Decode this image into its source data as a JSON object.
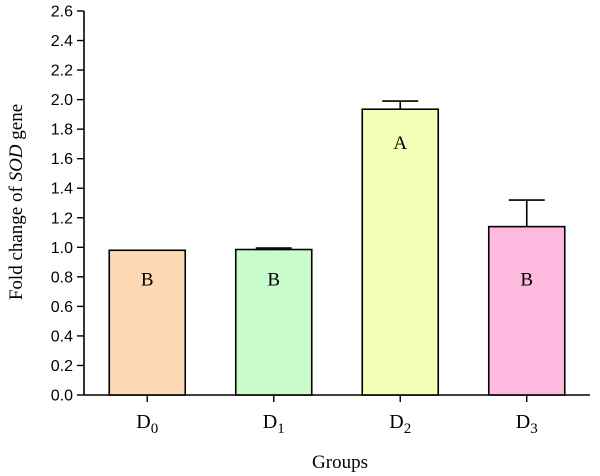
{
  "chart_data": {
    "type": "bar",
    "title": "",
    "xlabel": "Groups",
    "ylabel": {
      "prefix": "Fold change of ",
      "italic": "SOD",
      "suffix": " gene"
    },
    "ylim": [
      0,
      2.6
    ],
    "yticks": [
      "0.0",
      "0.2",
      "0.4",
      "0.6",
      "0.8",
      "1.0",
      "1.2",
      "1.4",
      "1.6",
      "1.8",
      "2.0",
      "2.2",
      "2.4",
      "2.6"
    ],
    "categories": [
      {
        "base": "D",
        "sub": "0"
      },
      {
        "base": "D",
        "sub": "1"
      },
      {
        "base": "D",
        "sub": "2"
      },
      {
        "base": "D",
        "sub": "3"
      }
    ],
    "values": [
      0.98,
      0.985,
      1.935,
      1.14
    ],
    "errors": [
      0.0,
      0.01,
      0.055,
      0.18
    ],
    "significance": [
      "B",
      "B",
      "A",
      "B"
    ],
    "colors": [
      "#fdd9b6",
      "#c8fcca",
      "#f2ffb6",
      "#feb9de"
    ],
    "grid": false,
    "legend": "none"
  }
}
